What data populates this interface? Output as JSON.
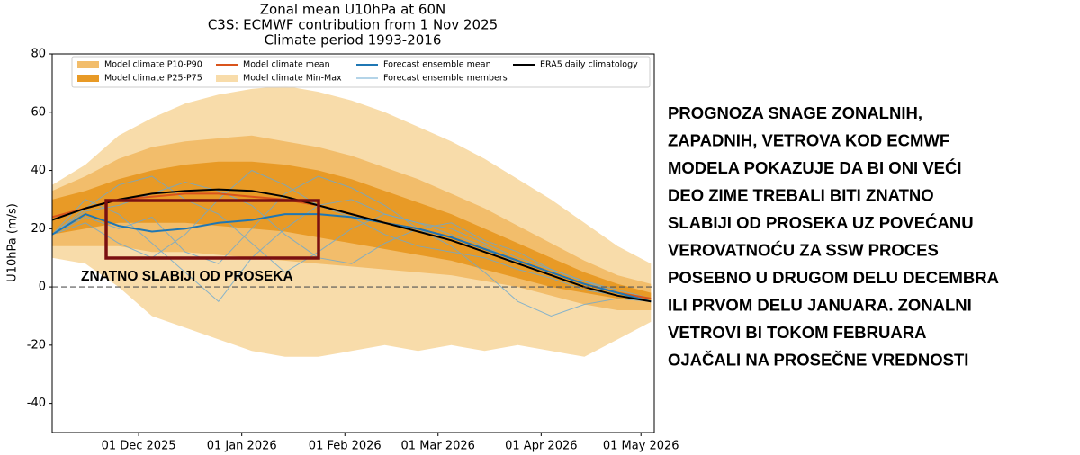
{
  "chart_data": {
    "type": "band-line",
    "title": [
      "Zonal mean U10hPa at 60N",
      "C3S: ECMWF contribution from 1 Nov 2025",
      "Climate period 1993-2016"
    ],
    "ylabel": "U10hPa (m/s)",
    "x": [
      "2025-11-05",
      "2025-11-15",
      "2025-11-25",
      "2025-12-05",
      "2025-12-15",
      "2025-12-25",
      "2026-01-04",
      "2026-01-14",
      "2026-01-24",
      "2026-02-03",
      "2026-02-13",
      "2026-02-23",
      "2026-03-05",
      "2026-03-15",
      "2026-03-25",
      "2026-04-04",
      "2026-04-14",
      "2026-04-24",
      "2026-05-04"
    ],
    "xlim": [
      "2025-11-05",
      "2026-05-05"
    ],
    "xticks": [
      {
        "value": "2025-12-01",
        "label": "01 Dec 2025"
      },
      {
        "value": "2026-01-01",
        "label": "01 Jan 2026"
      },
      {
        "value": "2026-02-01",
        "label": "01 Feb 2026"
      },
      {
        "value": "2026-03-01",
        "label": "01 Mar 2026"
      },
      {
        "value": "2026-04-01",
        "label": "01 Apr 2026"
      },
      {
        "value": "2026-05-01",
        "label": "01 May 2026"
      }
    ],
    "ylim": [
      -50,
      80
    ],
    "yticks": [
      -40,
      -20,
      0,
      20,
      40,
      60,
      80
    ],
    "hline": 0,
    "series": [
      {
        "name": "Model climate P10-P90",
        "kind": "band",
        "color": "#f2bd6b",
        "low": [
          14,
          14,
          14,
          12,
          12,
          11,
          10,
          9,
          8,
          7,
          6,
          5,
          4,
          2,
          0,
          -3,
          -6,
          -8,
          -8
        ],
        "high": [
          33,
          38,
          44,
          48,
          50,
          51,
          52,
          50,
          48,
          45,
          41,
          37,
          32,
          27,
          21,
          15,
          9,
          4,
          1
        ]
      },
      {
        "name": "Model climate P25-P75",
        "kind": "band",
        "color": "#e89a26",
        "low": [
          18,
          20,
          22,
          22,
          22,
          21,
          20,
          19,
          17,
          15,
          13,
          11,
          9,
          6,
          3,
          0,
          -2,
          -4,
          -5
        ],
        "high": [
          30,
          33,
          37,
          40,
          42,
          43,
          43,
          42,
          40,
          37,
          33,
          29,
          25,
          20,
          15,
          10,
          5,
          1,
          -2
        ]
      },
      {
        "name": "Model climate mean",
        "kind": "line",
        "color": "#d9541c",
        "values": [
          24,
          27,
          30,
          31,
          32,
          32,
          31,
          30,
          28,
          25,
          22,
          20,
          17,
          13,
          9,
          5,
          1,
          -2,
          -4
        ]
      },
      {
        "name": "Model climate Min-Max",
        "kind": "band",
        "color": "#f8dcaa",
        "low": [
          10,
          8,
          0,
          -10,
          -14,
          -18,
          -22,
          -24,
          -24,
          -22,
          -20,
          -22,
          -20,
          -22,
          -20,
          -22,
          -24,
          -18,
          -12
        ],
        "high": [
          35,
          42,
          52,
          58,
          63,
          66,
          68,
          69,
          67,
          64,
          60,
          55,
          50,
          44,
          37,
          30,
          22,
          14,
          8
        ]
      },
      {
        "name": "Forecast ensemble mean",
        "kind": "line",
        "color": "#1f77b4",
        "values": [
          18,
          25,
          21,
          19,
          20,
          22,
          23,
          25,
          25,
          24,
          22,
          20,
          17,
          13,
          9,
          5,
          1,
          -2,
          -5
        ]
      },
      {
        "name": "Forecast ensemble members",
        "kind": "members",
        "color": "#6aa9d2",
        "members": [
          [
            18,
            30,
            25,
            15,
            5,
            -5,
            10,
            20,
            28,
            30,
            25,
            22,
            20,
            15,
            10,
            6,
            2,
            -1,
            -4
          ],
          [
            18,
            27,
            35,
            38,
            30,
            25,
            15,
            5,
            12,
            20,
            25,
            22,
            18,
            14,
            8,
            4,
            0,
            -3,
            -5
          ],
          [
            18,
            22,
            15,
            10,
            18,
            30,
            40,
            35,
            28,
            24,
            18,
            14,
            12,
            10,
            6,
            3,
            -1,
            -3,
            -5
          ],
          [
            18,
            26,
            28,
            32,
            36,
            33,
            28,
            18,
            10,
            8,
            15,
            20,
            22,
            16,
            12,
            6,
            2,
            -2,
            -4
          ],
          [
            18,
            24,
            20,
            24,
            12,
            8,
            20,
            32,
            38,
            34,
            28,
            20,
            14,
            5,
            -5,
            -10,
            -6,
            -4,
            -5
          ]
        ]
      },
      {
        "name": "ERA5 daily climatology",
        "kind": "line",
        "color": "#000000",
        "values": [
          23,
          27,
          30,
          32,
          33,
          33.5,
          33,
          31,
          28,
          25,
          22,
          19,
          16,
          12,
          8,
          4,
          0,
          -3,
          -5
        ]
      }
    ],
    "annotation": "ZNATNO SLABIJI OD PROSEKA",
    "side_text": [
      "PROGNOZA SNAGE ZONALNIH,",
      "ZAPADNIH, VETROVA KOD ECMWF",
      "MODELA POKAZUJE DA BI ONI VEĆI",
      "DEO ZIME TREBALI BITI ZNATNO",
      "SLABIJI OD PROSEKA UZ POVEĆANU",
      "VEROVATNOĆU ZA SSW PROCES",
      "POSEBNO U DRUGOM DELU DECEMBRA",
      "ILI PRVOM DELU JANUARA. ZONALNI",
      "VETROVI BI TOKOM FEBRUARA",
      "OJAČALI NA PROSEČNE VREDNOSTI"
    ]
  }
}
